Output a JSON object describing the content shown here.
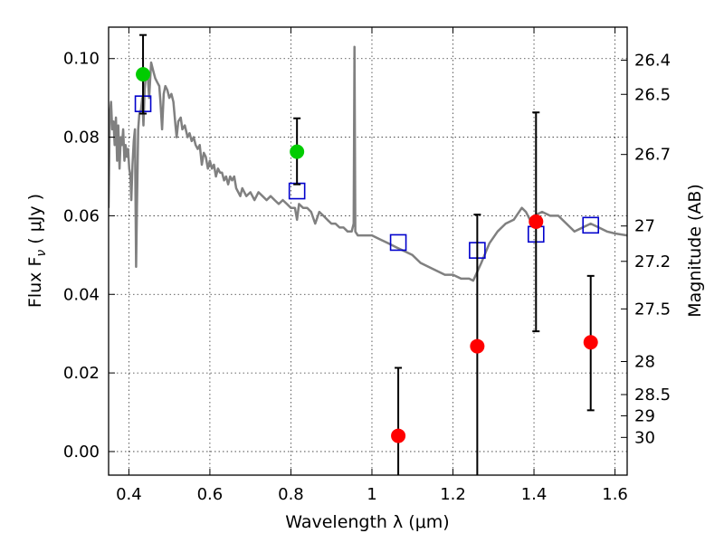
{
  "chart_data": {
    "type": "scatter",
    "xlabel": "Wavelength  λ (μm)",
    "ylabel": "Flux  F",
    "ylabel_sub": "ν",
    "ylabel_unit": " ( μJy )",
    "ylabel_right": "Magnitude (AB)",
    "xlim": [
      0.35,
      1.63
    ],
    "ylim": [
      -0.006,
      0.108
    ],
    "grid": true,
    "x_ticks": [
      {
        "value": 0.4,
        "label": "0.4"
      },
      {
        "value": 0.6,
        "label": "0.6"
      },
      {
        "value": 0.8,
        "label": "0.8"
      },
      {
        "value": 1.0,
        "label": "1"
      },
      {
        "value": 1.2,
        "label": "1.2"
      },
      {
        "value": 1.4,
        "label": "1.4"
      },
      {
        "value": 1.6,
        "label": "1.6"
      }
    ],
    "y_ticks": [
      {
        "value": 0.0,
        "label": "0.00"
      },
      {
        "value": 0.02,
        "label": "0.02"
      },
      {
        "value": 0.04,
        "label": "0.04"
      },
      {
        "value": 0.06,
        "label": "0.06"
      },
      {
        "value": 0.08,
        "label": "0.08"
      },
      {
        "value": 0.1,
        "label": "0.10"
      }
    ],
    "right_ticks": [
      {
        "flux": 0.0996,
        "label": "26.4"
      },
      {
        "flux": 0.0909,
        "label": "26.5"
      },
      {
        "flux": 0.0756,
        "label": "26.7"
      },
      {
        "flux": 0.0574,
        "label": "27"
      },
      {
        "flux": 0.0484,
        "label": "27.2"
      },
      {
        "flux": 0.0363,
        "label": "27.5"
      },
      {
        "flux": 0.0229,
        "label": "28"
      },
      {
        "flux": 0.0145,
        "label": "28.5"
      },
      {
        "flux": 0.0091,
        "label": "29"
      },
      {
        "flux": 0.0036,
        "label": "30"
      }
    ],
    "series": [
      {
        "kind": "model-spectrum",
        "color": "#808080",
        "points": [
          [
            0.35,
            0.062
          ],
          [
            0.353,
            0.086
          ],
          [
            0.356,
            0.089
          ],
          [
            0.359,
            0.082
          ],
          [
            0.362,
            0.084
          ],
          [
            0.365,
            0.078
          ],
          [
            0.368,
            0.085
          ],
          [
            0.371,
            0.074
          ],
          [
            0.374,
            0.083
          ],
          [
            0.377,
            0.072
          ],
          [
            0.38,
            0.08
          ],
          [
            0.383,
            0.078
          ],
          [
            0.386,
            0.082
          ],
          [
            0.389,
            0.074
          ],
          [
            0.392,
            0.078
          ],
          [
            0.395,
            0.075
          ],
          [
            0.398,
            0.077
          ],
          [
            0.401,
            0.072
          ],
          [
            0.404,
            0.07
          ],
          [
            0.406,
            0.064
          ],
          [
            0.409,
            0.073
          ],
          [
            0.412,
            0.079
          ],
          [
            0.415,
            0.082
          ],
          [
            0.418,
            0.047
          ],
          [
            0.42,
            0.062
          ],
          [
            0.423,
            0.082
          ],
          [
            0.426,
            0.086
          ],
          [
            0.43,
            0.087
          ],
          [
            0.433,
            0.09
          ],
          [
            0.436,
            0.083
          ],
          [
            0.439,
            0.092
          ],
          [
            0.443,
            0.097
          ],
          [
            0.447,
            0.095
          ],
          [
            0.45,
            0.09
          ],
          [
            0.455,
            0.099
          ],
          [
            0.46,
            0.097
          ],
          [
            0.465,
            0.095
          ],
          [
            0.47,
            0.094
          ],
          [
            0.475,
            0.093
          ],
          [
            0.478,
            0.089
          ],
          [
            0.482,
            0.082
          ],
          [
            0.486,
            0.091
          ],
          [
            0.49,
            0.093
          ],
          [
            0.495,
            0.092
          ],
          [
            0.5,
            0.09
          ],
          [
            0.505,
            0.091
          ],
          [
            0.51,
            0.089
          ],
          [
            0.515,
            0.083
          ],
          [
            0.518,
            0.08
          ],
          [
            0.522,
            0.084
          ],
          [
            0.528,
            0.085
          ],
          [
            0.532,
            0.082
          ],
          [
            0.538,
            0.083
          ],
          [
            0.545,
            0.08
          ],
          [
            0.55,
            0.081
          ],
          [
            0.555,
            0.079
          ],
          [
            0.56,
            0.08
          ],
          [
            0.565,
            0.078
          ],
          [
            0.57,
            0.077
          ],
          [
            0.575,
            0.078
          ],
          [
            0.58,
            0.073
          ],
          [
            0.585,
            0.076
          ],
          [
            0.59,
            0.075
          ],
          [
            0.595,
            0.072
          ],
          [
            0.6,
            0.074
          ],
          [
            0.605,
            0.072
          ],
          [
            0.61,
            0.073
          ],
          [
            0.615,
            0.07
          ],
          [
            0.62,
            0.072
          ],
          [
            0.625,
            0.071
          ],
          [
            0.63,
            0.071
          ],
          [
            0.635,
            0.069
          ],
          [
            0.64,
            0.07
          ],
          [
            0.645,
            0.068
          ],
          [
            0.65,
            0.07
          ],
          [
            0.655,
            0.069
          ],
          [
            0.66,
            0.07
          ],
          [
            0.665,
            0.067
          ],
          [
            0.67,
            0.066
          ],
          [
            0.675,
            0.065
          ],
          [
            0.68,
            0.067
          ],
          [
            0.685,
            0.066
          ],
          [
            0.69,
            0.065
          ],
          [
            0.7,
            0.066
          ],
          [
            0.71,
            0.064
          ],
          [
            0.72,
            0.066
          ],
          [
            0.73,
            0.065
          ],
          [
            0.74,
            0.064
          ],
          [
            0.75,
            0.065
          ],
          [
            0.76,
            0.064
          ],
          [
            0.77,
            0.063
          ],
          [
            0.78,
            0.064
          ],
          [
            0.79,
            0.063
          ],
          [
            0.8,
            0.062
          ],
          [
            0.81,
            0.062
          ],
          [
            0.815,
            0.059
          ],
          [
            0.82,
            0.063
          ],
          [
            0.83,
            0.062
          ],
          [
            0.84,
            0.062
          ],
          [
            0.85,
            0.061
          ],
          [
            0.86,
            0.058
          ],
          [
            0.87,
            0.061
          ],
          [
            0.88,
            0.06
          ],
          [
            0.89,
            0.059
          ],
          [
            0.9,
            0.058
          ],
          [
            0.91,
            0.058
          ],
          [
            0.92,
            0.057
          ],
          [
            0.93,
            0.057
          ],
          [
            0.94,
            0.056
          ],
          [
            0.95,
            0.056
          ],
          [
            0.955,
            0.058
          ],
          [
            0.957,
            0.103
          ],
          [
            0.959,
            0.056
          ],
          [
            0.965,
            0.055
          ],
          [
            0.98,
            0.055
          ],
          [
            1.0,
            0.055
          ],
          [
            1.02,
            0.054
          ],
          [
            1.04,
            0.053
          ],
          [
            1.06,
            0.052
          ],
          [
            1.08,
            0.051
          ],
          [
            1.1,
            0.05
          ],
          [
            1.12,
            0.048
          ],
          [
            1.14,
            0.047
          ],
          [
            1.16,
            0.046
          ],
          [
            1.18,
            0.045
          ],
          [
            1.2,
            0.045
          ],
          [
            1.22,
            0.044
          ],
          [
            1.24,
            0.044
          ],
          [
            1.25,
            0.0435
          ],
          [
            1.27,
            0.048
          ],
          [
            1.29,
            0.053
          ],
          [
            1.31,
            0.056
          ],
          [
            1.33,
            0.058
          ],
          [
            1.35,
            0.059
          ],
          [
            1.37,
            0.062
          ],
          [
            1.38,
            0.061
          ],
          [
            1.39,
            0.059
          ],
          [
            1.4,
            0.06
          ],
          [
            1.42,
            0.061
          ],
          [
            1.44,
            0.06
          ],
          [
            1.46,
            0.06
          ],
          [
            1.48,
            0.058
          ],
          [
            1.5,
            0.056
          ],
          [
            1.52,
            0.057
          ],
          [
            1.54,
            0.058
          ],
          [
            1.56,
            0.057
          ],
          [
            1.58,
            0.056
          ],
          [
            1.6,
            0.0555
          ],
          [
            1.63,
            0.055
          ]
        ]
      },
      {
        "kind": "model-photometry",
        "marker": "square",
        "color": "#0000cc",
        "points": [
          [
            0.435,
            0.0885
          ],
          [
            0.815,
            0.0663
          ],
          [
            1.065,
            0.0532
          ],
          [
            1.26,
            0.0512
          ],
          [
            1.405,
            0.0553
          ],
          [
            1.54,
            0.0576
          ]
        ]
      },
      {
        "kind": "detections",
        "marker": "circle",
        "color": "#00cc00",
        "points": [
          {
            "x": 0.435,
            "y": 0.096,
            "ylo": 0.086,
            "yhi": 0.106
          },
          {
            "x": 0.815,
            "y": 0.0763,
            "ylo": 0.068,
            "yhi": 0.0848
          }
        ]
      },
      {
        "kind": "non-detections",
        "marker": "circle",
        "color": "#ff0000",
        "points": [
          {
            "x": 1.065,
            "y": 0.004,
            "ylo": -0.006,
            "yhi": 0.0213
          },
          {
            "x": 1.26,
            "y": 0.0268,
            "ylo": -0.006,
            "yhi": 0.0603
          },
          {
            "x": 1.405,
            "y": 0.0585,
            "ylo": 0.0306,
            "yhi": 0.0863
          },
          {
            "x": 1.54,
            "y": 0.0278,
            "ylo": 0.0105,
            "yhi": 0.0447
          }
        ]
      }
    ]
  }
}
